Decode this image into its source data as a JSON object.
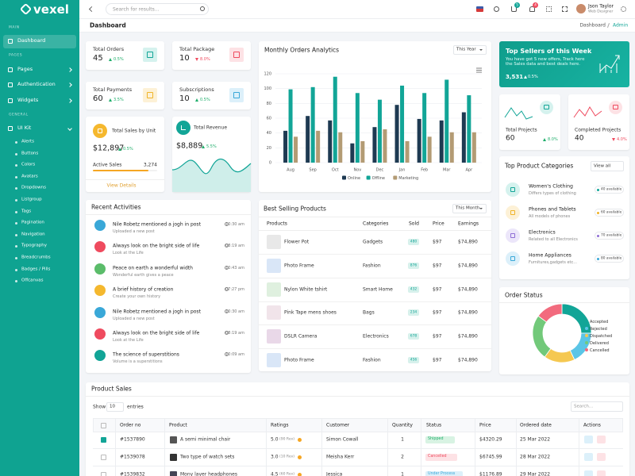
{
  "sidebar": {
    "logo": "vexel",
    "sections": [
      {
        "title": "MAIN",
        "items": [
          "Dashboard"
        ]
      },
      {
        "title": "PAGES",
        "items": [
          "Pages",
          "Authentication",
          "Widgets"
        ]
      },
      {
        "title": "GENERAL",
        "items": [
          "UI Kit"
        ]
      }
    ],
    "subitems": [
      "Alerts",
      "Buttons",
      "Colors",
      "Avatars",
      "Dropdowns",
      "Listgroup",
      "Tags",
      "Pagination",
      "Navigation",
      "Typography",
      "Breadcrumbs",
      "Badges / Pills",
      "Offcanvas"
    ]
  },
  "header": {
    "search": "Search for results...",
    "cart_badge": "5",
    "notif_badge": "4",
    "user_name": "Json Taylor",
    "user_role": "Web Designer"
  },
  "page": {
    "title": "Dashboard",
    "breadcrumb": [
      "Dashboard",
      "Admin"
    ]
  },
  "stats": [
    {
      "label": "Total Orders",
      "value": "45",
      "change": "0.5%",
      "trend": "up"
    },
    {
      "label": "Total Package",
      "value": "10",
      "change": "8.0%",
      "trend": "down"
    },
    {
      "label": "Total Payments",
      "value": "60",
      "change": "3.5%",
      "trend": "up"
    },
    {
      "label": "Subscriptions",
      "value": "10",
      "change": "0.5%",
      "trend": "up"
    }
  ],
  "sales_unit": {
    "title": "Total Sales by Unit",
    "value": "$12,897",
    "change": "0.5%",
    "label": "Active Sales",
    "count": "3,274",
    "link": "View Details"
  },
  "revenue": {
    "title": "Total Revenue",
    "value": "$8,889",
    "change": "5.5%"
  },
  "top_sellers": {
    "title": "Top Sellers of this Week",
    "text": "You have got 5 new offers, Track here the Sales data and best deals here.",
    "value": "3,531",
    "change": "0.5%"
  },
  "projects": [
    {
      "label": "Total Projects",
      "value": "60",
      "change": "8.0%",
      "trend": "up"
    },
    {
      "label": "Completed Projects",
      "value": "40",
      "change": "4.0%",
      "trend": "down"
    }
  ],
  "categories": {
    "title": "Top Product Categories",
    "filter": "View all",
    "items": [
      {
        "name": "Women's Clothing",
        "desc": "Differs types of clothing",
        "badge": "40 available"
      },
      {
        "name": "Phones and Tablets",
        "desc": "All models of phones",
        "badge": "60 available"
      },
      {
        "name": "Electronics",
        "desc": "Related to all Electronics",
        "badge": "70 available"
      },
      {
        "name": "Home Appliances",
        "desc": "Furnitures,gadgets etc...",
        "badge": "80 available"
      }
    ]
  },
  "activities": {
    "title": "Recent Activities",
    "items": [
      {
        "text": "Nile Robetz mentioned a jogh in post",
        "sub": "Uploaded a new post",
        "time": "10:30 am"
      },
      {
        "text": "Always look on the bright side of life",
        "sub": "Look at the Life",
        "time": "08:19 am"
      },
      {
        "text": "Peace on earth a wonderful width",
        "sub": "Wonderful earth gives a peace",
        "time": "10:43 am"
      },
      {
        "text": "A brief history of creation",
        "sub": "Create your own history",
        "time": "07:27 pm"
      },
      {
        "text": "Nile Robetz mentioned a jogh in post",
        "sub": "Uploaded a new post",
        "time": "10:30 am"
      },
      {
        "text": "Always look on the bright side of life",
        "sub": "Look at the Life",
        "time": "08:19 am"
      },
      {
        "text": "The science of superstitions",
        "sub": "Volume is a superstitions",
        "time": "10:09 am"
      }
    ]
  },
  "best_selling": {
    "title": "Best Selling Products",
    "filter": "This Month",
    "columns": [
      "Products",
      "Categories",
      "Sold",
      "Price",
      "Earnings"
    ],
    "rows": [
      [
        "Flower Pot",
        "Gadgets",
        "480",
        "$97",
        "$74,890"
      ],
      [
        "Photo Frame",
        "Fashion",
        "876",
        "$97",
        "$74,890"
      ],
      [
        "Nylon White tshirt",
        "Smart Home",
        "432",
        "$97",
        "$74,890"
      ],
      [
        "Pink Tape mens shoes",
        "Bags",
        "234",
        "$97",
        "$74,890"
      ],
      [
        "DSLR Camera",
        "Electronics",
        "678",
        "$97",
        "$74,890"
      ],
      [
        "Photo Frame",
        "Fashion",
        "456",
        "$97",
        "$74,890"
      ]
    ]
  },
  "product_sales": {
    "title": "Product Sales",
    "show": "Show",
    "page_size": "10",
    "entries": "entries",
    "search": "Search...",
    "columns": [
      "Order no",
      "Product",
      "Ratings",
      "Customer",
      "Quantity",
      "Status",
      "Price",
      "Ordered date",
      "Actions"
    ],
    "rows": [
      {
        "order": "#1537890",
        "product": "A semi minimal chair",
        "rating": "5.0",
        "reviews": "(90 Rev)",
        "customer": "Simon Cowall",
        "quantity": "1",
        "status": "Shipped",
        "price": "$4320.29",
        "date": "25 Mar 2022"
      },
      {
        "order": "#1539078",
        "product": "Two type of watch sets",
        "rating": "3.0",
        "reviews": "(10 Rev)",
        "customer": "Meisha Kerr",
        "quantity": "2",
        "status": "Cancelled",
        "price": "$6745.99",
        "date": "28 Mar 2022"
      },
      {
        "order": "#1539832",
        "product": "Mony layer headphones",
        "rating": "4.5",
        "reviews": "(60 Rev)",
        "customer": "Jessica",
        "quantity": "1",
        "status": "Under Process",
        "price": "$1176.89",
        "date": "29 Mar 2022"
      }
    ]
  },
  "chart_data": [
    {
      "type": "bar",
      "title": "Monthly Orders Analytics",
      "filter": "This Year",
      "categories": [
        "Aug",
        "Sep",
        "Oct",
        "Nov",
        "Dec",
        "Jan",
        "Feb",
        "Mar",
        "Apr"
      ],
      "series": [
        {
          "name": "Online",
          "color": "#1e3a52",
          "values": [
            43,
            63,
            57,
            26,
            48,
            78,
            59,
            57,
            68
          ]
        },
        {
          "name": "Offline",
          "color": "#12a597",
          "values": [
            99,
            102,
            116,
            94,
            85,
            104,
            94,
            112,
            91
          ]
        },
        {
          "name": "Marketing",
          "color": "#b39b74",
          "values": [
            35,
            43,
            41,
            29,
            45,
            29,
            35,
            41,
            41
          ]
        }
      ],
      "ylim": [
        0,
        120
      ],
      "yticks": [
        0,
        20,
        40,
        60,
        80,
        100,
        120
      ],
      "grid": true
    },
    {
      "type": "doughnut",
      "title": "Order Status",
      "categories": [
        "Accepted",
        "Rejected",
        "Dispatched",
        "Delivered",
        "Cancelled"
      ],
      "values": [
        25,
        18,
        17,
        25,
        15
      ],
      "colors": [
        "#12a597",
        "#5bc5e6",
        "#f5c851",
        "#72c97a",
        "#f26b7e"
      ]
    }
  ]
}
